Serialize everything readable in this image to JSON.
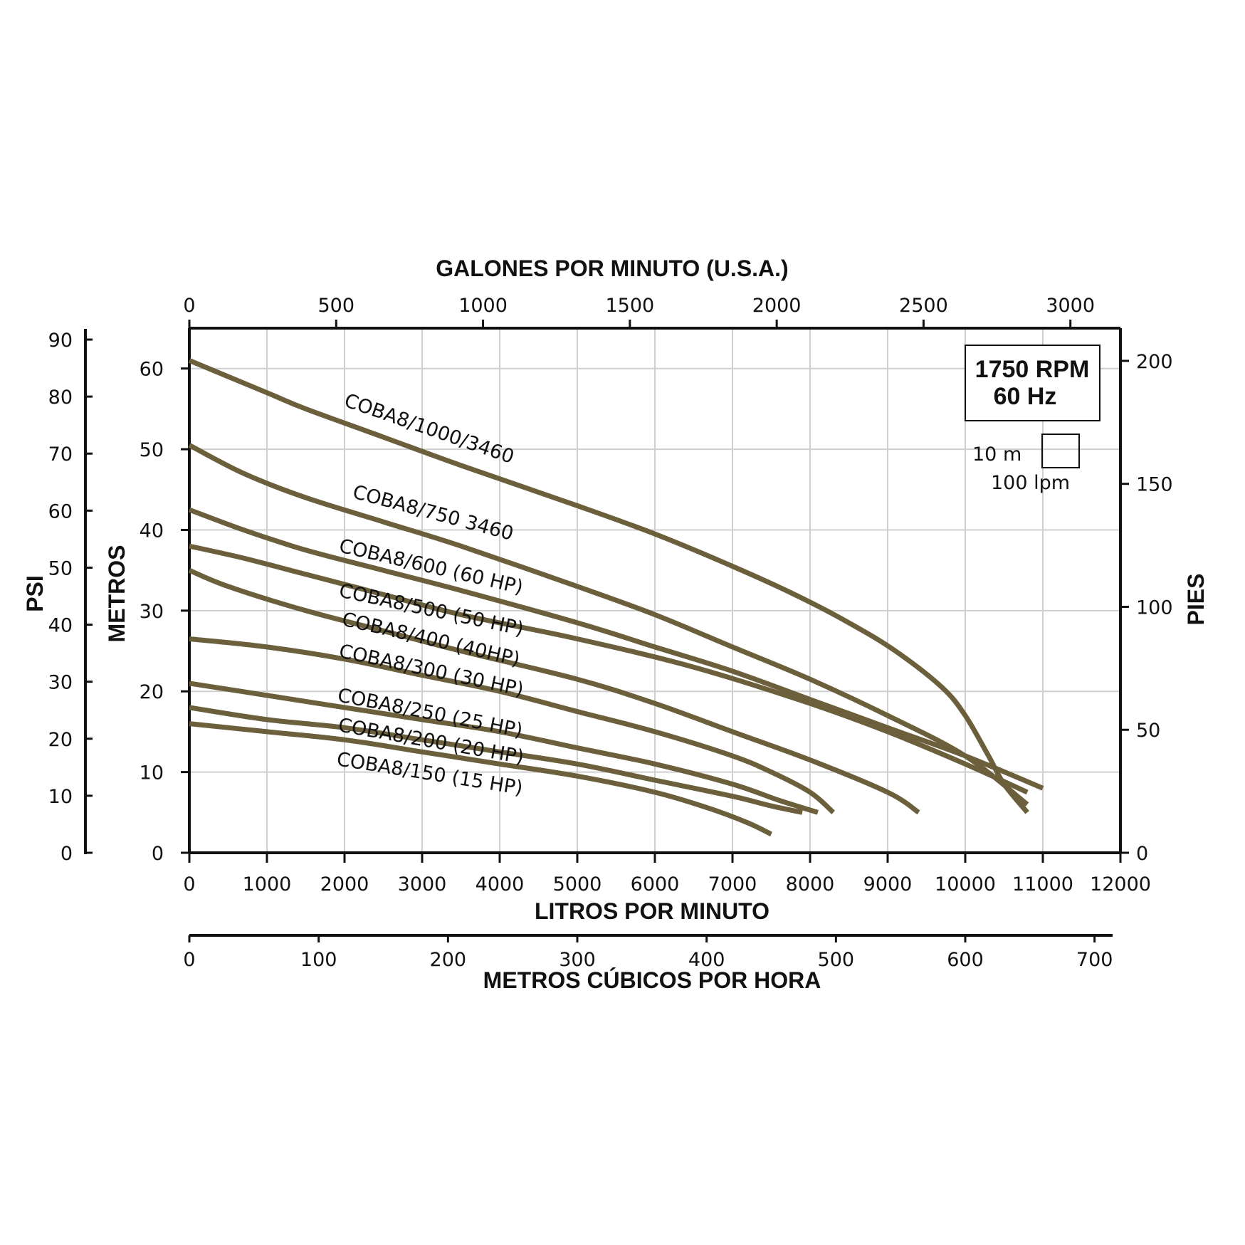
{
  "chart_data": {
    "type": "line",
    "title": "",
    "top_axis": {
      "label": "GALONES POR MINUTO (U.S.A.)",
      "ticks": [
        "0",
        "500",
        "1000",
        "1500",
        "2000",
        "2500",
        "3000"
      ],
      "range": [
        0,
        3170.4
      ]
    },
    "bottom_axis": {
      "label": "LITROS POR MINUTO",
      "ticks": [
        "0",
        "1000",
        "2000",
        "3000",
        "4000",
        "5000",
        "6000",
        "7000",
        "8000",
        "9000",
        "10000",
        "11000",
        "12000"
      ],
      "range": [
        0,
        12000
      ]
    },
    "bottom_axis_2": {
      "label": "METROS CÚBICOS POR HORA",
      "ticks": [
        "0",
        "100",
        "200",
        "300",
        "400",
        "500",
        "600",
        "700"
      ],
      "range": [
        0,
        720
      ]
    },
    "left_axis_outer": {
      "label": "PSI",
      "ticks": [
        "0",
        "10",
        "20",
        "30",
        "40",
        "50",
        "60",
        "70",
        "80",
        "90"
      ],
      "range": [
        0,
        92
      ]
    },
    "left_axis_inner": {
      "label": "METROS",
      "ticks": [
        "0",
        "10",
        "20",
        "30",
        "40",
        "50",
        "60"
      ],
      "range": [
        0,
        65
      ]
    },
    "right_axis": {
      "label": "PIES",
      "ticks": [
        "0",
        "50",
        "100",
        "150",
        "200"
      ],
      "range": [
        0,
        213.3
      ]
    },
    "xlim": [
      0,
      12000
    ],
    "ylim": [
      0,
      65
    ],
    "grid": true,
    "legend_box": {
      "line1": "1750 RPM",
      "line2": "60 Hz"
    },
    "scale_note": {
      "vertical": "10 m",
      "horizontal": "100 lpm"
    },
    "line_color": "#6b5f3c",
    "series": [
      {
        "name": "COBA8/1000/3460",
        "x": [
          0,
          1000,
          1500,
          2500,
          3500,
          5000,
          6000,
          7000,
          7800,
          8500,
          9100,
          9700,
          10000,
          10300,
          10500,
          10800
        ],
        "y": [
          61,
          57,
          55,
          51.5,
          48,
          43,
          39.5,
          35.5,
          32,
          28.5,
          25,
          20.5,
          17,
          12,
          8.5,
          5
        ]
      },
      {
        "name": "COBA8/750 3460",
        "x": [
          0,
          700,
          1500,
          2500,
          3500,
          5000,
          6000,
          7000,
          8000,
          9000,
          10000,
          10800
        ],
        "y": [
          50.5,
          47,
          44,
          41,
          38,
          33,
          29.5,
          25.5,
          21.5,
          17,
          12,
          6
        ]
      },
      {
        "name": "COBA8/600 (60 HP)",
        "x": [
          0,
          700,
          1500,
          2500,
          3500,
          5000,
          6000,
          7000,
          8000,
          9000,
          10000,
          11000
        ],
        "y": [
          42.5,
          40,
          37.5,
          35,
          32.5,
          28.5,
          25.5,
          22.5,
          19,
          15.5,
          12,
          8
        ]
      },
      {
        "name": "COBA8/500 (50 HP)",
        "x": [
          0,
          700,
          1500,
          2500,
          3500,
          5000,
          6500,
          8000,
          9000,
          10000,
          10800
        ],
        "y": [
          38,
          36.5,
          34.5,
          32,
          29.5,
          26.5,
          23,
          18.5,
          15,
          11,
          7.5
        ]
      },
      {
        "name": "COBA8/400 (40HP)",
        "x": [
          0,
          500,
          1500,
          2500,
          3500,
          5000,
          6000,
          7000,
          8000,
          9000,
          9400
        ],
        "y": [
          35,
          33,
          30,
          27.5,
          25,
          21.5,
          18.5,
          15,
          11.5,
          7.5,
          5
        ]
      },
      {
        "name": "COBA8/300 (30 HP)",
        "x": [
          0,
          1000,
          2000,
          3000,
          4000,
          5000,
          6000,
          7000,
          7500,
          8000,
          8300
        ],
        "y": [
          26.5,
          25.5,
          24,
          22,
          20,
          17.5,
          15,
          12,
          10,
          7.5,
          5
        ]
      },
      {
        "name": "COBA8/250 (25 HP)",
        "x": [
          0,
          1000,
          2000,
          3000,
          4000,
          5000,
          6000,
          7000,
          7600,
          8100
        ],
        "y": [
          21,
          19.5,
          18,
          16.5,
          15,
          13,
          11,
          8.5,
          6.5,
          5
        ]
      },
      {
        "name": "COBA8/200 (20 HP)",
        "x": [
          0,
          1000,
          2000,
          3000,
          4000,
          5000,
          6000,
          7000,
          7500,
          7900
        ],
        "y": [
          18,
          16.5,
          15.5,
          14,
          12.5,
          11,
          9,
          7,
          5.8,
          5
        ]
      },
      {
        "name": "COBA8/150 (15 HP)",
        "x": [
          0,
          1000,
          2000,
          3000,
          4000,
          5000,
          6000,
          6700,
          7200,
          7500
        ],
        "y": [
          16,
          15,
          14,
          12.5,
          11,
          9.5,
          7.5,
          5.5,
          3.7,
          2.3
        ]
      }
    ]
  }
}
